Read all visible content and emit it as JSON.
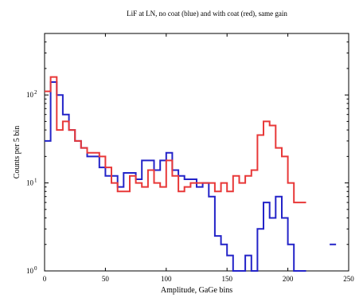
{
  "chart_data": {
    "type": "line",
    "style": "step",
    "title": "LiF at LN, no coat (blue) and with coat (red), same gain",
    "xlabel": "Amplitude, GaGe bins",
    "ylabel": "Counts per 5 bin",
    "xlim": [
      0,
      250
    ],
    "ylim": [
      1,
      500
    ],
    "yscale": "log",
    "grid": false,
    "xticks": [
      0,
      50,
      100,
      150,
      200,
      250
    ],
    "yticks": [
      {
        "value": 1,
        "base": "10",
        "exp": "0"
      },
      {
        "value": 10,
        "base": "10",
        "exp": "1"
      },
      {
        "value": 100,
        "base": "10",
        "exp": "2"
      }
    ],
    "series": [
      {
        "color": "#2323c8",
        "x": [
          0,
          5,
          10,
          15,
          20,
          25,
          30,
          35,
          40,
          45,
          50,
          55,
          60,
          65,
          70,
          75,
          80,
          85,
          90,
          95,
          100,
          105,
          110,
          115,
          120,
          125,
          130,
          135,
          140,
          145,
          150,
          155,
          160,
          165,
          170,
          175,
          180,
          185,
          190,
          195,
          200,
          205,
          210
        ],
        "y": [
          30,
          140,
          100,
          60,
          40,
          30,
          25,
          20,
          20,
          15,
          12,
          12,
          9,
          13,
          13,
          11,
          18,
          18,
          14,
          18,
          22,
          14,
          12,
          11,
          11,
          9,
          10,
          7,
          2.5,
          2,
          1.5,
          1,
          0.8,
          1.5,
          0.8,
          3,
          6,
          4,
          7,
          4,
          2,
          1,
          0.8
        ]
      },
      {
        "color": "#e83838",
        "x": [
          0,
          5,
          10,
          15,
          20,
          25,
          30,
          35,
          40,
          45,
          50,
          55,
          60,
          65,
          70,
          75,
          80,
          85,
          90,
          95,
          100,
          105,
          110,
          115,
          120,
          125,
          130,
          135,
          140,
          145,
          150,
          155,
          160,
          165,
          170,
          175,
          180,
          185,
          190,
          195,
          200,
          205,
          210
        ],
        "y": [
          110,
          160,
          40,
          50,
          40,
          30,
          25,
          22,
          22,
          20,
          15,
          10,
          8,
          8,
          12,
          10,
          9,
          14,
          10,
          9,
          18,
          12,
          8,
          9,
          10,
          10,
          10,
          10,
          8,
          10,
          8,
          12,
          10,
          12,
          14,
          35,
          50,
          45,
          25,
          20,
          10,
          6,
          6
        ]
      }
    ],
    "markers": [
      {
        "x": 237,
        "y": 2,
        "color": "#2323c8"
      }
    ]
  }
}
